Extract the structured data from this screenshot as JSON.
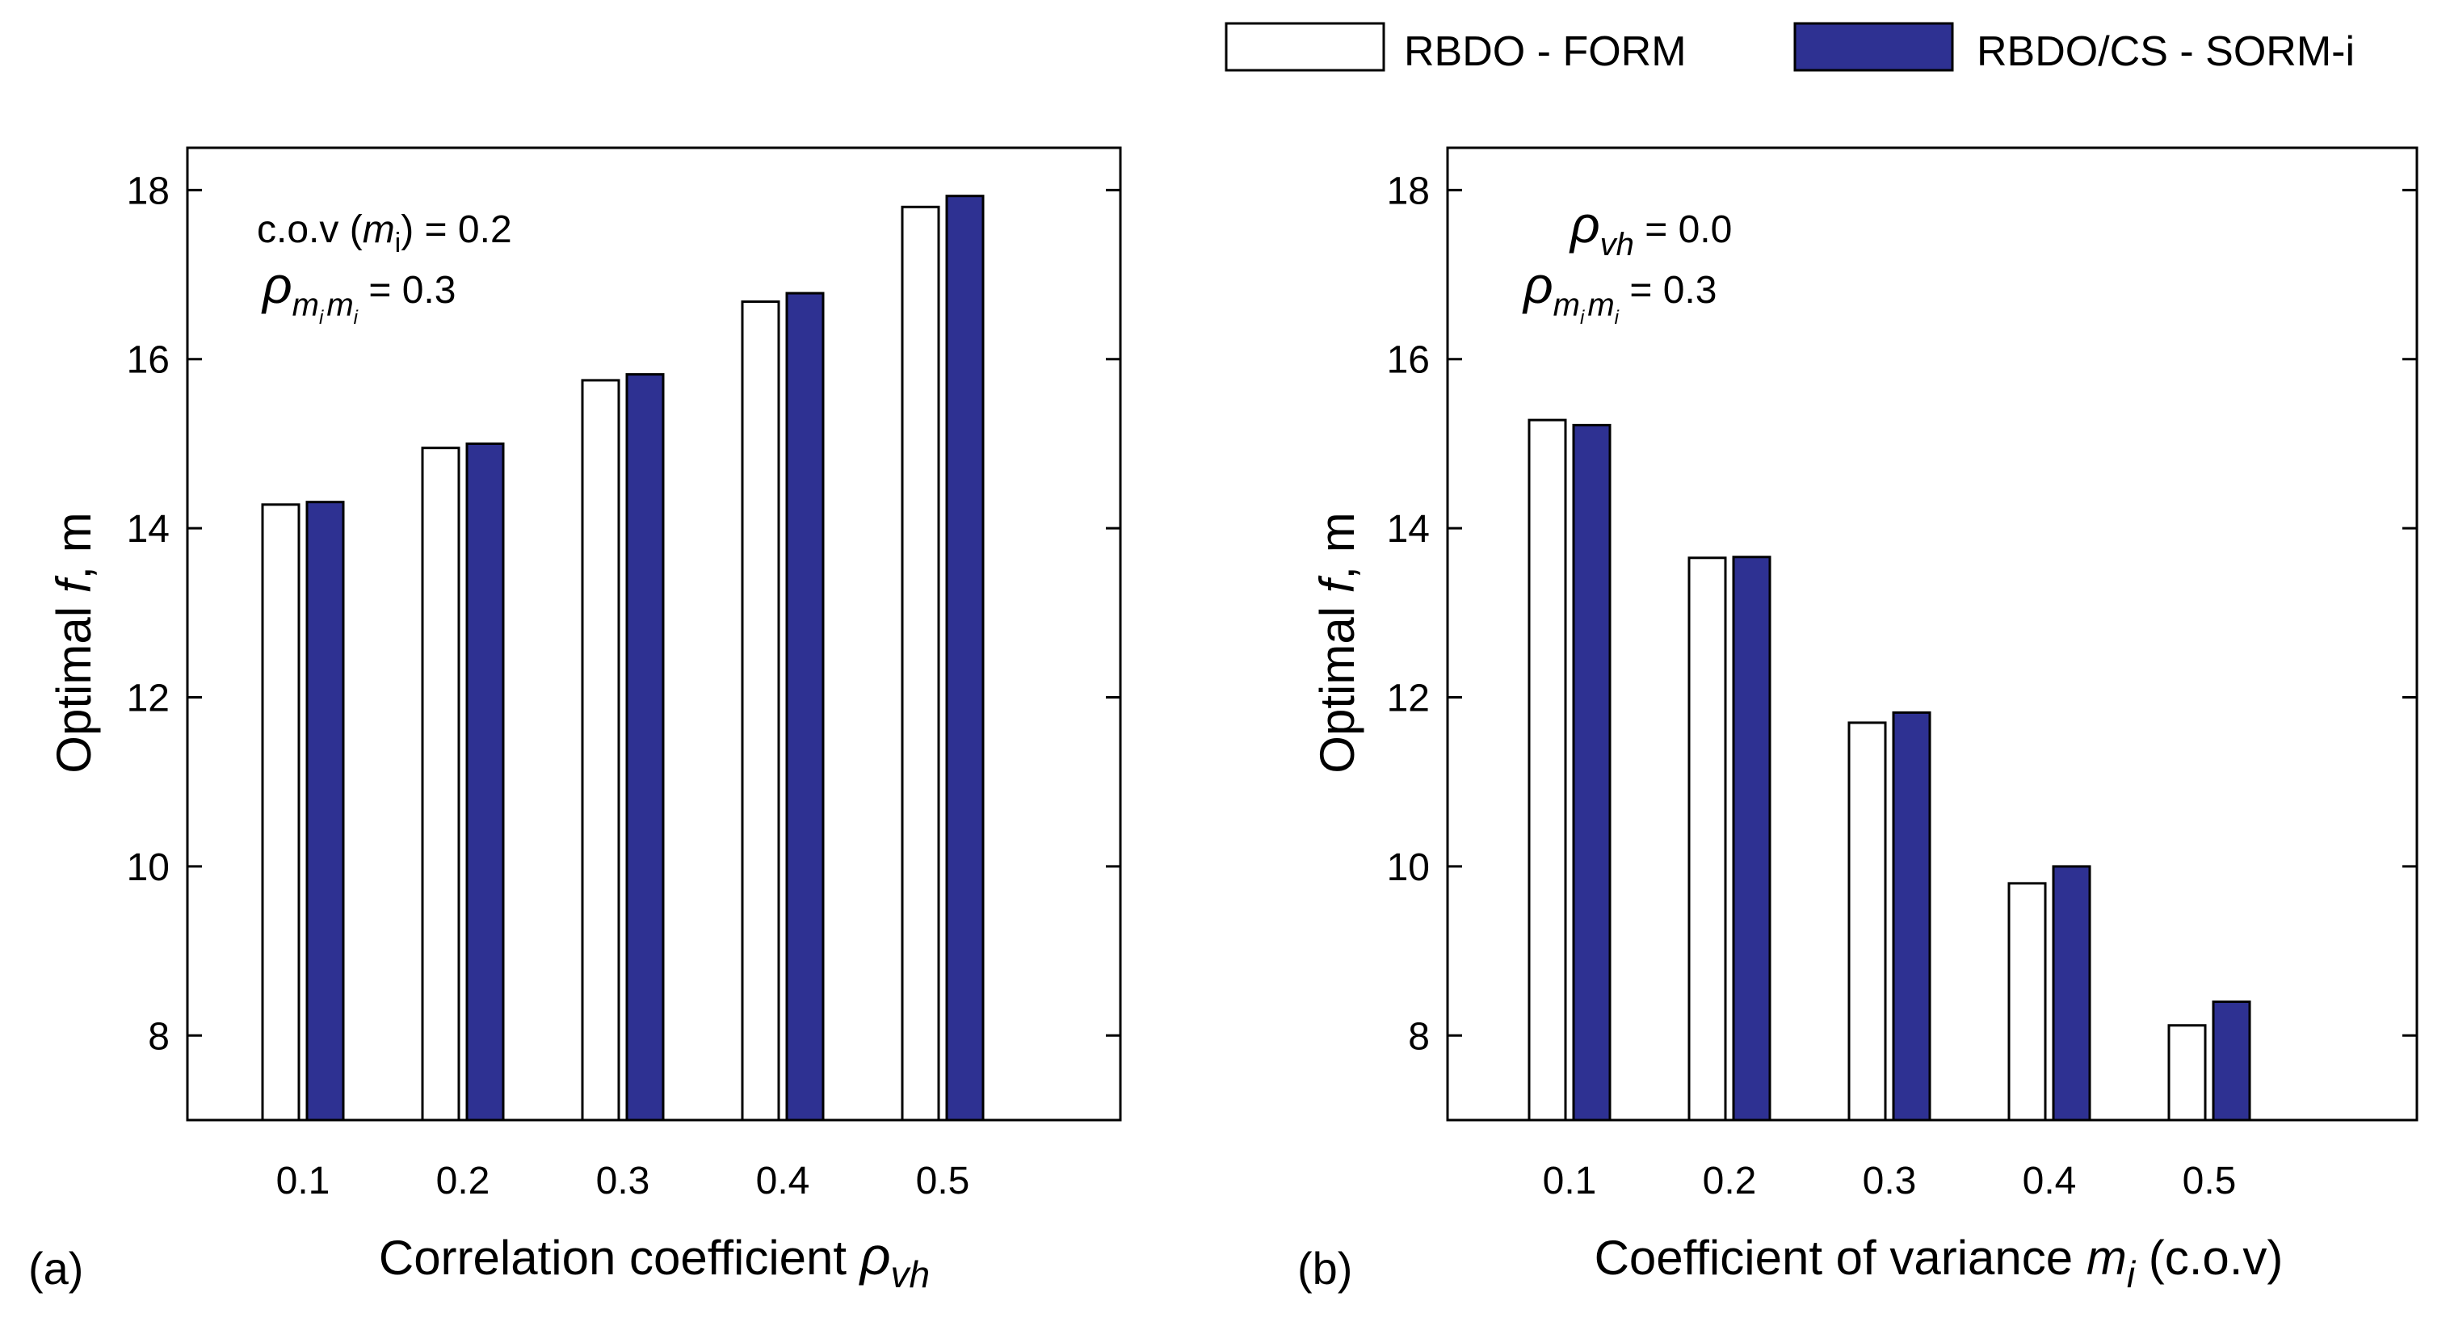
{
  "legend": {
    "items": [
      {
        "label": "RBDO - FORM",
        "color": "#ffffff"
      },
      {
        "label": "RBDO/CS - SORM-i",
        "color": "#2e3192"
      }
    ]
  },
  "chart_data": [
    {
      "type": "bar",
      "panel_label": "(a)",
      "categories": [
        "0.1",
        "0.2",
        "0.3",
        "0.4",
        "0.5"
      ],
      "series": [
        {
          "name": "RBDO - FORM",
          "color": "#ffffff",
          "values": [
            14.28,
            14.95,
            15.75,
            16.68,
            17.8
          ]
        },
        {
          "name": "RBDO/CS - SORM-i",
          "color": "#2e3192",
          "values": [
            14.31,
            15.0,
            15.82,
            16.78,
            17.93
          ]
        }
      ],
      "yticks": [
        "8",
        "10",
        "12",
        "14",
        "16",
        "18"
      ],
      "ylim": [
        7,
        18.5
      ],
      "ylabel": {
        "pre": "Optimal ",
        "var": "f",
        "post": ", m"
      },
      "xlabel": {
        "text": "Correlation coefficient ",
        "sym": "ρ",
        "sub": "vh",
        "post": ""
      },
      "annotations": {
        "line1": {
          "pre": "c.o.v (",
          "var": "m",
          "sub": "i",
          "post": ") = 0.2"
        },
        "line2": {
          "sym": "ρ",
          "sub1": "m",
          "subsub1": "i",
          "sub2": "m",
          "subsub2": "i",
          "post": " = 0.3"
        }
      }
    },
    {
      "type": "bar",
      "panel_label": "(b)",
      "categories": [
        "0.1",
        "0.2",
        "0.3",
        "0.4",
        "0.5"
      ],
      "series": [
        {
          "name": "RBDO - FORM",
          "color": "#ffffff",
          "values": [
            15.28,
            13.65,
            11.7,
            9.8,
            8.12
          ]
        },
        {
          "name": "RBDO/CS - SORM-i",
          "color": "#2e3192",
          "values": [
            15.22,
            13.66,
            11.82,
            10.0,
            8.4
          ]
        }
      ],
      "yticks": [
        "8",
        "10",
        "12",
        "14",
        "16",
        "18"
      ],
      "ylim": [
        7,
        18.5
      ],
      "ylabel": {
        "pre": "Optimal ",
        "var": "f",
        "post": ", m"
      },
      "xlabel": {
        "text": "Coefficient of variance ",
        "var": "m",
        "sub": "i",
        "post": " (c.o.v)"
      },
      "annotations": {
        "line1": {
          "sym": "ρ",
          "sub": "vh",
          "post": " = 0.0"
        },
        "line2": {
          "sym": "ρ",
          "sub1": "m",
          "subsub1": "i",
          "sub2": "m",
          "subsub2": "i",
          "post": " = 0.3"
        }
      }
    }
  ]
}
